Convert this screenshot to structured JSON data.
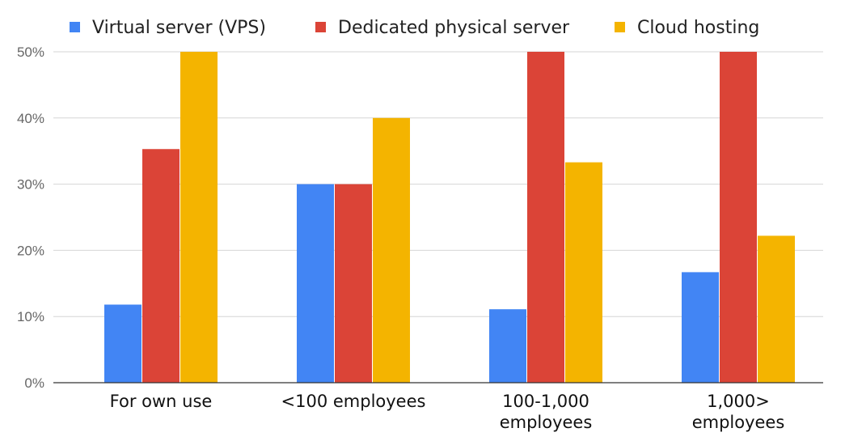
{
  "chart_data": {
    "type": "bar",
    "title": "",
    "xlabel": "",
    "ylabel": "",
    "categories": [
      [
        "For own use"
      ],
      [
        "<100 employees"
      ],
      [
        "100-1,000",
        "employees"
      ],
      [
        "1,000>",
        "employees"
      ]
    ],
    "series": [
      {
        "name": "Virtual server (VPS)",
        "color": "#4285f4",
        "values": [
          11.8,
          30.0,
          11.1,
          16.7
        ]
      },
      {
        "name": "Dedicated physical server",
        "color": "#db4437",
        "values": [
          35.3,
          30.0,
          50.0,
          50.0
        ]
      },
      {
        "name": "Cloud hosting",
        "color": "#f4b400",
        "values": [
          50.0,
          40.0,
          33.3,
          22.2
        ]
      }
    ],
    "ylim": [
      0,
      50
    ],
    "yticks": [
      0,
      10,
      20,
      30,
      40,
      50
    ],
    "ytick_labels": [
      "0%",
      "10%",
      "20%",
      "30%",
      "40%",
      "50%"
    ],
    "grid": true,
    "legend_position": "top"
  }
}
